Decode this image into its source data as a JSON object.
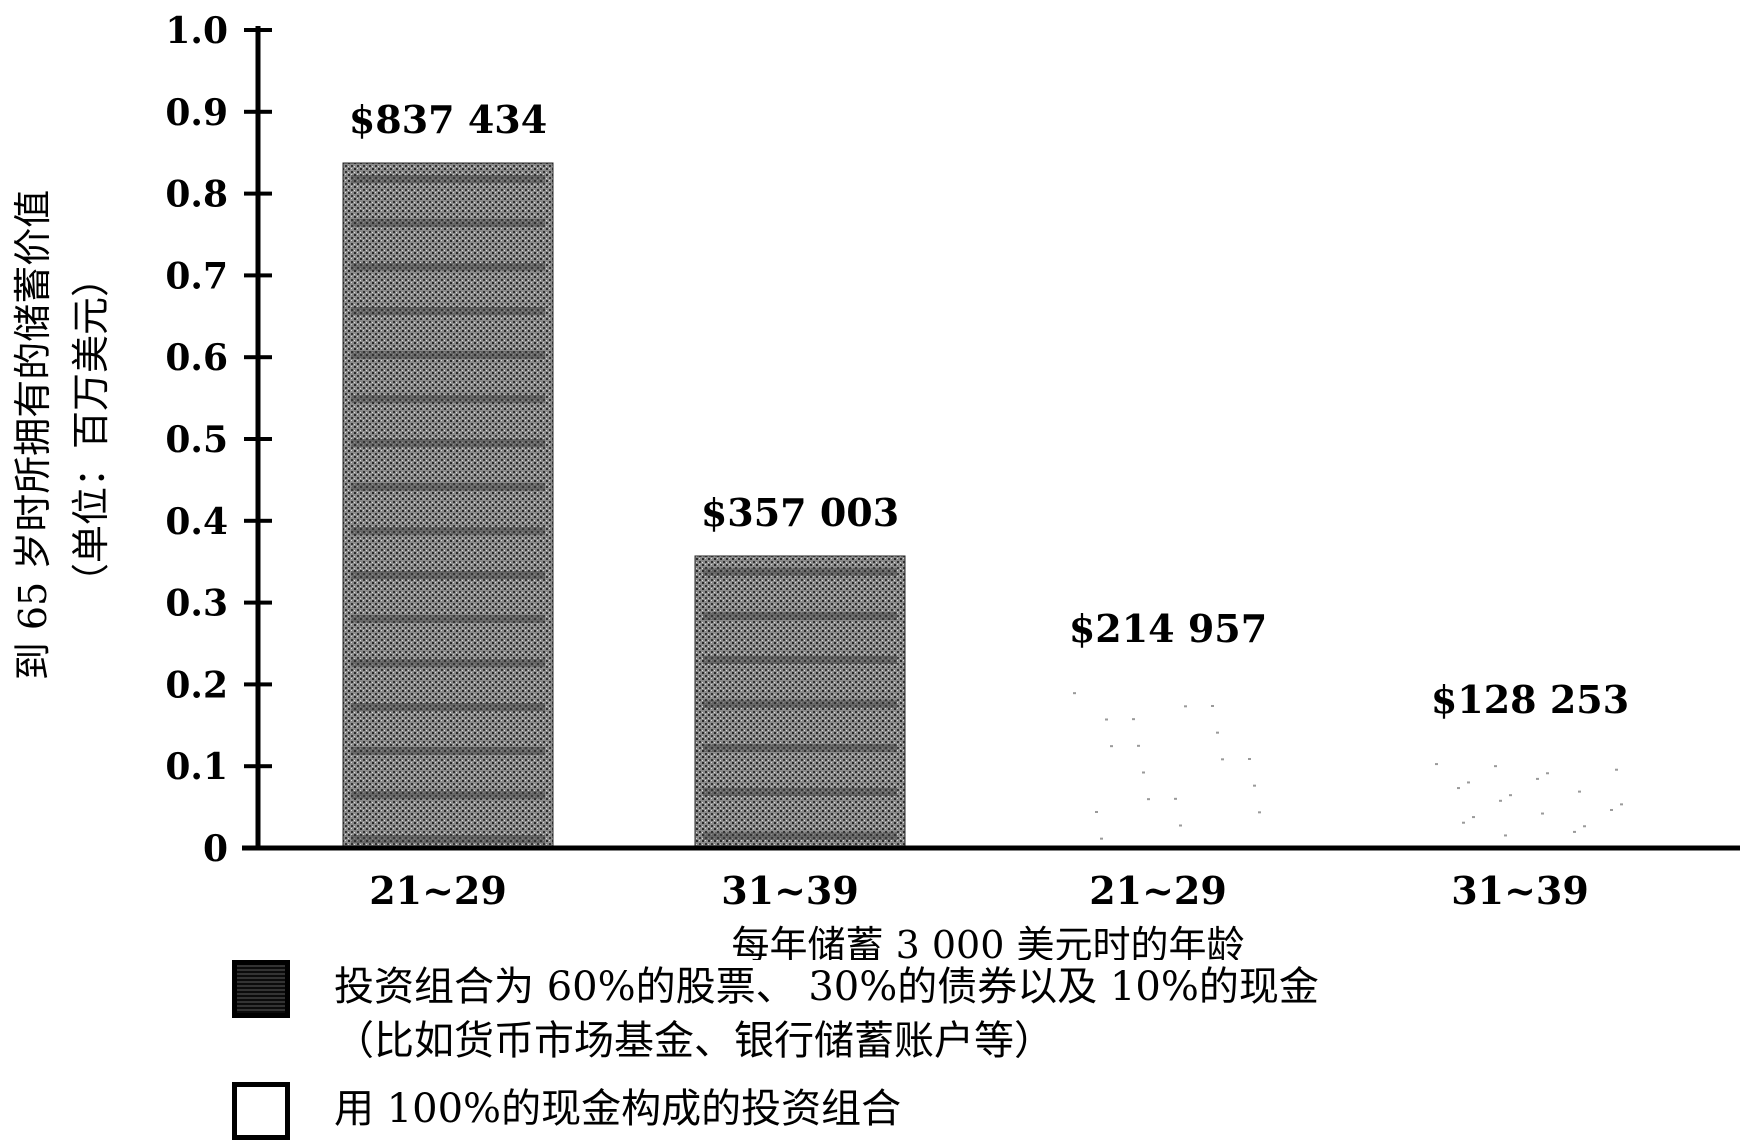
{
  "chart_data": {
    "type": "bar",
    "categories": [
      "21~29",
      "31~39",
      "21~29",
      "31~39"
    ],
    "series": [
      {
        "name": "投资组合为 60%的股票、 30%的债券以及 10%的现金（比如货币市场基金、银行储蓄账户等）",
        "values": [
          0.837434,
          0.357003,
          null,
          null
        ],
        "labels": [
          "$837 434",
          "$357 003",
          null,
          null
        ],
        "color": "#6e6e6e",
        "pattern": "dense-grey-texture"
      },
      {
        "name": "用 100%的现金构成的投资组合",
        "values": [
          null,
          null,
          0.214957,
          0.128253
        ],
        "labels": [
          null,
          null,
          "$214 957",
          "$128 253"
        ],
        "color": "#ffffff",
        "pattern": "white"
      }
    ],
    "xlabel": "每年储蓄 3 000 美元时的年龄",
    "ylabel": "到 65 岁时所拥有的储蓄价值",
    "ylabel2": "（单位：百万美元）",
    "ylim": [
      0,
      1.0
    ],
    "yticks": [
      "0",
      "0.1",
      "0.2",
      "0.3",
      "0.4",
      "0.5",
      "0.6",
      "0.7",
      "0.8",
      "0.9",
      "1.0"
    ],
    "legend_position": "bottom-left",
    "grid": false
  },
  "legend": {
    "item1_line1": "投资组合为 60%的股票、 30%的债券以及 10%的现金",
    "item1_line2": "（比如货币市场基金、银行储蓄账户等）",
    "item2": "用 100%的现金构成的投资组合"
  }
}
